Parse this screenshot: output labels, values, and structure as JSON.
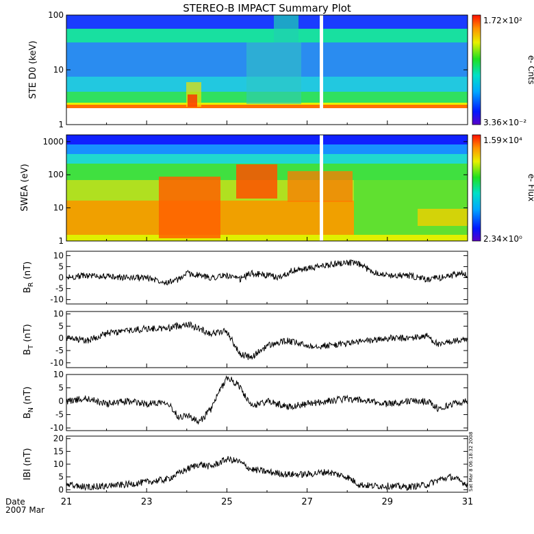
{
  "title": "STEREO-B IMPACT Summary Plot",
  "footer": {
    "date_label": "Date",
    "year_month": "2007 Mar"
  },
  "side_stamp": "Sat Mar  8 06:18:32 2008",
  "chart_data": [
    {
      "type": "heatmap",
      "ylabel": "STE D0 (keV)",
      "yscale": "log",
      "ylim": [
        1,
        100
      ],
      "yticks": [
        "1",
        "10",
        "100"
      ],
      "colorbar": {
        "max": "1.72×10²",
        "min": "3.36×10⁻²",
        "label": "e- Cnts"
      },
      "xlim": [
        21,
        31
      ],
      "data_gap_day": 27.35
    },
    {
      "type": "heatmap",
      "ylabel": "SWEA (eV)",
      "yscale": "log",
      "ylim": [
        1,
        1600
      ],
      "yticks": [
        "1",
        "10",
        "100",
        "1000"
      ],
      "colorbar": {
        "max": "1.59×10⁴",
        "min": "2.34×10⁰",
        "label": "e- Flux"
      },
      "xlim": [
        21,
        31
      ],
      "data_gap_day": 27.35
    },
    {
      "type": "line",
      "ylabel": "B_R (nT)",
      "ylabel_main": "B",
      "ylabel_sub": "R",
      "ylabel_unit": " (nT)",
      "ylim": [
        -12,
        12
      ],
      "yticks": [
        "-10",
        "-5",
        "0",
        "5",
        "10"
      ],
      "x": [
        21,
        21.5,
        22,
        22.5,
        23,
        23.5,
        23.8,
        24,
        24.3,
        24.6,
        25,
        25.3,
        25.6,
        26,
        26.3,
        26.6,
        27,
        27.3,
        27.6,
        28,
        28.3,
        28.6,
        29,
        29.5,
        30,
        30.3,
        30.6,
        30.9,
        31
      ],
      "y": [
        0,
        1,
        0.5,
        0,
        0,
        -2,
        -1,
        2,
        1,
        0,
        1,
        -1,
        2,
        1,
        0,
        3,
        4,
        5,
        6,
        7,
        6,
        3,
        1,
        1,
        -1,
        0,
        1,
        2,
        0
      ]
    },
    {
      "type": "line",
      "ylabel": "B_T (nT)",
      "ylabel_main": "B",
      "ylabel_sub": "T",
      "ylabel_unit": " (nT)",
      "ylim": [
        -12,
        11
      ],
      "yticks": [
        "-10",
        "-5",
        "0",
        "5",
        "10"
      ],
      "x": [
        21,
        21.5,
        22,
        22.5,
        23,
        23.5,
        24,
        24.3,
        24.6,
        25,
        25.3,
        25.6,
        26,
        26.5,
        27,
        27.5,
        28,
        28.5,
        29,
        29.5,
        30,
        30.3,
        30.6,
        31
      ],
      "y": [
        0,
        -1,
        2,
        3,
        4,
        4,
        6,
        4,
        2,
        3,
        -6,
        -8,
        -3,
        -1,
        -3,
        -3,
        -2,
        -1,
        0,
        0,
        1,
        -3,
        -1,
        -1
      ]
    },
    {
      "type": "line",
      "ylabel": "B_N (nT)",
      "ylabel_main": "B",
      "ylabel_sub": "N",
      "ylabel_unit": " (nT)",
      "ylim": [
        -11,
        10
      ],
      "yticks": [
        "-10",
        "-5",
        "0",
        "5",
        "10"
      ],
      "x": [
        21,
        21.5,
        22,
        22.5,
        23,
        23.5,
        23.8,
        24,
        24.3,
        24.6,
        25,
        25.3,
        25.6,
        26,
        26.5,
        27,
        27.5,
        28,
        28.5,
        29,
        29.5,
        30,
        30.3,
        30.6,
        31
      ],
      "y": [
        0,
        1,
        -1,
        0,
        -1,
        0,
        -6,
        -5,
        -8,
        -3,
        9,
        6,
        -2,
        0,
        -2,
        -1,
        0,
        1,
        0,
        -1,
        0,
        0,
        -3,
        -1,
        0
      ]
    },
    {
      "type": "line",
      "ylabel": "|B| (nT)",
      "ylabel_main": "IBI",
      "ylabel_sub": "",
      "ylabel_unit": " (nT)",
      "ylim": [
        -1,
        21
      ],
      "yticks": [
        "0",
        "5",
        "10",
        "15",
        "20"
      ],
      "x": [
        21,
        21.5,
        22,
        22.5,
        23,
        23.5,
        24,
        24.3,
        24.6,
        25,
        25.3,
        25.6,
        26,
        26.5,
        27,
        27.5,
        28,
        28.3,
        28.6,
        29,
        29.5,
        30,
        30.3,
        30.6,
        31
      ],
      "y": [
        2,
        1,
        1.5,
        2,
        3,
        4,
        8,
        10,
        9,
        12,
        11,
        8,
        7,
        6,
        6,
        7,
        5,
        2,
        1.5,
        1.5,
        1,
        2,
        4,
        5,
        2
      ],
      "xticks": [
        "21",
        "23",
        "25",
        "27",
        "29",
        "31"
      ]
    }
  ]
}
